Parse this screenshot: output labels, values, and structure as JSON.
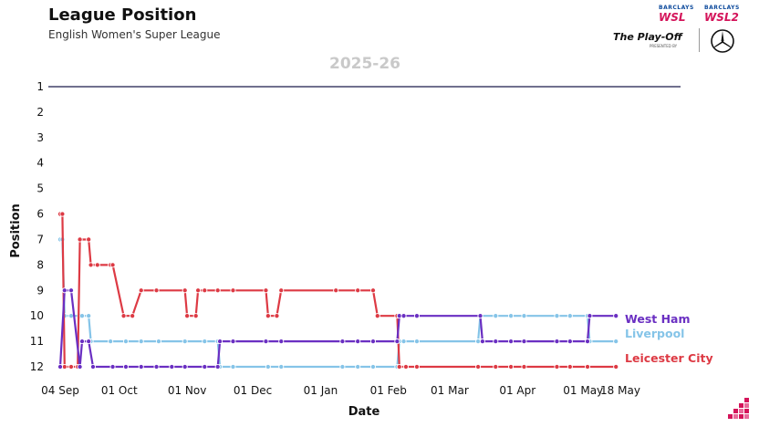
{
  "header": {
    "title": "League Position",
    "subtitle": "English Women's Super League",
    "season": "2025-26"
  },
  "logos": {
    "wsl_sponsor": "BARCLAYS",
    "wsl": "WSL",
    "wsl2_sponsor": "BARCLAYS",
    "wsl2": "WSL2",
    "playoff": "The Play-Off",
    "playoff_sub": "PRESENTED BY",
    "mercedes_icon": "mercedes-star-icon"
  },
  "chart_data": {
    "type": "line",
    "title": "",
    "xlabel": "Date",
    "ylabel": "Position",
    "x_ticks": [
      "04 Sep",
      "01 Oct",
      "01 Nov",
      "01 Dec",
      "01 Jan",
      "01 Feb",
      "01 Mar",
      "01 Apr",
      "01 May",
      "18 May"
    ],
    "x_tick_dates": [
      "2025-09-04",
      "2025-10-01",
      "2025-11-01",
      "2025-12-01",
      "2026-01-01",
      "2026-02-01",
      "2026-03-01",
      "2026-04-01",
      "2026-05-01",
      "2026-05-18"
    ],
    "y_ticks": [
      1,
      2,
      3,
      4,
      5,
      6,
      7,
      8,
      9,
      10,
      11,
      12
    ],
    "ylim": [
      1,
      12
    ],
    "y_inverted": true,
    "xlim": [
      "2025-09-04",
      "2026-05-18"
    ],
    "grid": false,
    "reference_position": 1,
    "series": [
      {
        "name": "West Ham",
        "color": "#6a2fc2",
        "points": [
          [
            "2025-09-04",
            12
          ],
          [
            "2025-09-06",
            9
          ],
          [
            "2025-09-09",
            9
          ],
          [
            "2025-09-13",
            12
          ],
          [
            "2025-09-14",
            11
          ],
          [
            "2025-09-17",
            11
          ],
          [
            "2025-09-19",
            12
          ],
          [
            "2025-09-28",
            12
          ],
          [
            "2025-10-04",
            12
          ],
          [
            "2025-10-11",
            12
          ],
          [
            "2025-10-18",
            12
          ],
          [
            "2025-10-25",
            12
          ],
          [
            "2025-10-31",
            12
          ],
          [
            "2025-11-09",
            12
          ],
          [
            "2025-11-15",
            12
          ],
          [
            "2025-11-16",
            11
          ],
          [
            "2025-11-22",
            11
          ],
          [
            "2025-12-07",
            11
          ],
          [
            "2025-12-14",
            11
          ],
          [
            "2026-01-11",
            11
          ],
          [
            "2026-01-18",
            11
          ],
          [
            "2026-01-25",
            11
          ],
          [
            "2026-02-05",
            11
          ],
          [
            "2026-02-06",
            10
          ],
          [
            "2026-02-08",
            10
          ],
          [
            "2026-02-14",
            10
          ],
          [
            "2026-03-15",
            10
          ],
          [
            "2026-03-16",
            11
          ],
          [
            "2026-03-22",
            11
          ],
          [
            "2026-03-29",
            11
          ],
          [
            "2026-04-04",
            11
          ],
          [
            "2026-04-19",
            11
          ],
          [
            "2026-04-25",
            11
          ],
          [
            "2026-05-03",
            11
          ],
          [
            "2026-05-04",
            10
          ],
          [
            "2026-05-16",
            10
          ]
        ]
      },
      {
        "name": "Liverpool",
        "color": "#85c4e8",
        "points": [
          [
            "2025-09-04",
            7
          ],
          [
            "2025-09-05",
            7
          ],
          [
            "2025-09-06",
            10
          ],
          [
            "2025-09-09",
            10
          ],
          [
            "2025-09-13",
            10
          ],
          [
            "2025-09-14",
            10
          ],
          [
            "2025-09-17",
            10
          ],
          [
            "2025-09-18",
            11
          ],
          [
            "2025-09-27",
            11
          ],
          [
            "2025-10-04",
            11
          ],
          [
            "2025-10-11",
            11
          ],
          [
            "2025-10-19",
            11
          ],
          [
            "2025-10-31",
            11
          ],
          [
            "2025-11-09",
            11
          ],
          [
            "2025-11-15",
            11
          ],
          [
            "2025-11-16",
            12
          ],
          [
            "2025-11-22",
            12
          ],
          [
            "2025-12-08",
            12
          ],
          [
            "2025-12-14",
            12
          ],
          [
            "2026-01-11",
            12
          ],
          [
            "2026-01-18",
            12
          ],
          [
            "2026-01-25",
            12
          ],
          [
            "2026-02-05",
            12
          ],
          [
            "2026-02-06",
            11
          ],
          [
            "2026-02-08",
            11
          ],
          [
            "2026-02-14",
            11
          ],
          [
            "2026-03-14",
            11
          ],
          [
            "2026-03-15",
            10
          ],
          [
            "2026-03-22",
            10
          ],
          [
            "2026-03-29",
            10
          ],
          [
            "2026-04-04",
            10
          ],
          [
            "2026-04-19",
            10
          ],
          [
            "2026-04-25",
            10
          ],
          [
            "2026-05-03",
            10
          ],
          [
            "2026-05-04",
            11
          ],
          [
            "2026-05-16",
            11
          ]
        ]
      },
      {
        "name": "Leicester City",
        "color": "#dd3a44",
        "points": [
          [
            "2025-09-04",
            6
          ],
          [
            "2025-09-05",
            6
          ],
          [
            "2025-09-06",
            12
          ],
          [
            "2025-09-09",
            12
          ],
          [
            "2025-09-12",
            12
          ],
          [
            "2025-09-13",
            7
          ],
          [
            "2025-09-17",
            7
          ],
          [
            "2025-09-18",
            8
          ],
          [
            "2025-09-21",
            8
          ],
          [
            "2025-09-27",
            8
          ],
          [
            "2025-09-28",
            8
          ],
          [
            "2025-10-03",
            10
          ],
          [
            "2025-10-07",
            10
          ],
          [
            "2025-10-11",
            9
          ],
          [
            "2025-10-18",
            9
          ],
          [
            "2025-10-31",
            9
          ],
          [
            "2025-11-01",
            10
          ],
          [
            "2025-11-05",
            10
          ],
          [
            "2025-11-06",
            9
          ],
          [
            "2025-11-09",
            9
          ],
          [
            "2025-11-15",
            9
          ],
          [
            "2025-11-22",
            9
          ],
          [
            "2025-12-07",
            9
          ],
          [
            "2025-12-08",
            10
          ],
          [
            "2025-12-12",
            10
          ],
          [
            "2025-12-14",
            9
          ],
          [
            "2026-01-08",
            9
          ],
          [
            "2026-01-18",
            9
          ],
          [
            "2026-01-25",
            9
          ],
          [
            "2026-01-27",
            10
          ],
          [
            "2026-02-05",
            10
          ],
          [
            "2026-02-06",
            12
          ],
          [
            "2026-02-09",
            12
          ],
          [
            "2026-02-14",
            12
          ],
          [
            "2026-03-14",
            12
          ],
          [
            "2026-03-22",
            12
          ],
          [
            "2026-03-29",
            12
          ],
          [
            "2026-04-04",
            12
          ],
          [
            "2026-04-19",
            12
          ],
          [
            "2026-04-25",
            12
          ],
          [
            "2026-05-03",
            12
          ],
          [
            "2026-05-16",
            12
          ]
        ]
      }
    ]
  },
  "colors": {
    "reference_line": "#1a1a4a",
    "season_text": "#c9c9c9",
    "brand_pink": "#d4145a"
  }
}
